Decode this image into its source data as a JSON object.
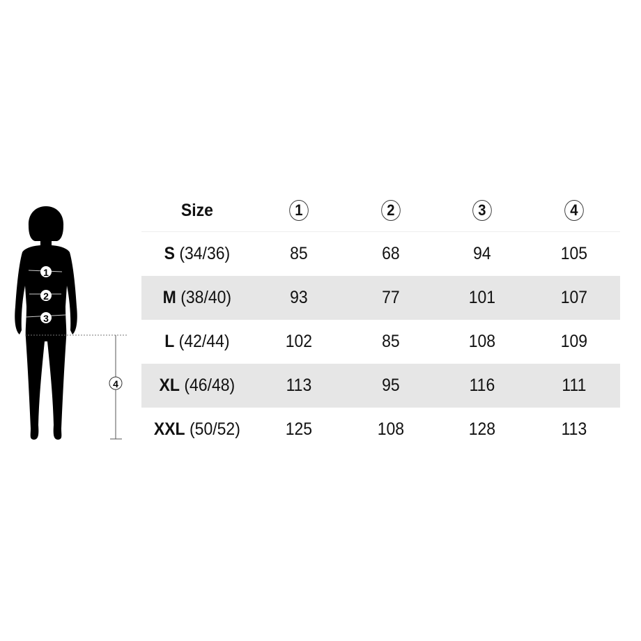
{
  "header": {
    "size_label": "Size",
    "columns": [
      "1",
      "2",
      "3",
      "4"
    ]
  },
  "figure": {
    "markers": [
      "1",
      "2",
      "3",
      "4"
    ]
  },
  "rows": [
    {
      "size": "S",
      "eu": "(34/36)",
      "values": [
        "85",
        "68",
        "94",
        "105"
      ]
    },
    {
      "size": "M",
      "eu": "(38/40)",
      "values": [
        "93",
        "77",
        "101",
        "107"
      ]
    },
    {
      "size": "L",
      "eu": "(42/44)",
      "values": [
        "102",
        "85",
        "108",
        "109"
      ]
    },
    {
      "size": "XL",
      "eu": "(46/48)",
      "values": [
        "113",
        "95",
        "116",
        "111"
      ]
    },
    {
      "size": "XXL",
      "eu": "(50/52)",
      "values": [
        "125",
        "108",
        "128",
        "113"
      ]
    }
  ],
  "colors": {
    "shade": "#e6e6e6",
    "silhouette": "#000000"
  }
}
